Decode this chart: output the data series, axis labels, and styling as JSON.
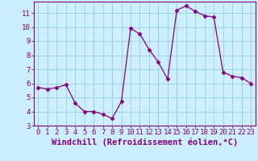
{
  "x": [
    0,
    1,
    2,
    3,
    4,
    5,
    6,
    7,
    8,
    9,
    10,
    11,
    12,
    13,
    14,
    15,
    16,
    17,
    18,
    19,
    20,
    21,
    22,
    23
  ],
  "y": [
    5.7,
    5.6,
    5.7,
    5.9,
    4.6,
    4.0,
    4.0,
    3.8,
    3.5,
    4.7,
    9.9,
    9.5,
    8.4,
    7.5,
    6.3,
    11.2,
    11.5,
    11.1,
    10.8,
    10.7,
    6.8,
    6.5,
    6.4,
    6.0
  ],
  "line_color": "#800080",
  "marker": "D",
  "marker_size": 2.5,
  "bg_color": "#cceeff",
  "grid_color": "#99ccdd",
  "xlabel": "Windchill (Refroidissement éolien,°C)",
  "xlim": [
    -0.5,
    23.5
  ],
  "ylim": [
    3,
    11.8
  ],
  "yticks": [
    3,
    4,
    5,
    6,
    7,
    8,
    9,
    10,
    11
  ],
  "xticks": [
    0,
    1,
    2,
    3,
    4,
    5,
    6,
    7,
    8,
    9,
    10,
    11,
    12,
    13,
    14,
    15,
    16,
    17,
    18,
    19,
    20,
    21,
    22,
    23
  ],
  "tick_color": "#800080",
  "label_color": "#800080",
  "axis_color": "#800080",
  "font_size": 6.5,
  "xlabel_fontsize": 7.5
}
